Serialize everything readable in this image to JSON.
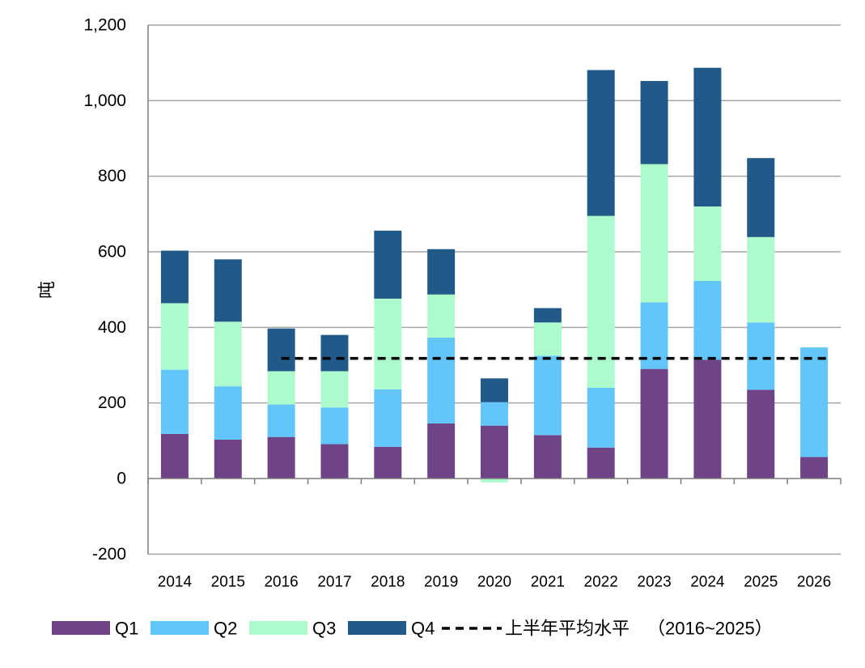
{
  "chart_data": {
    "type": "bar",
    "stacked": true,
    "title": "",
    "xlabel": "",
    "ylabel": "吨",
    "ylim": [
      -200,
      1200
    ],
    "yticks": [
      -200,
      0,
      200,
      400,
      600,
      800,
      1000,
      1200
    ],
    "ytick_labels": [
      "-200",
      "0",
      "200",
      "400",
      "600",
      "800",
      "1,000",
      "1,200"
    ],
    "grid": true,
    "legend_position": "bottom",
    "categories": [
      "2014",
      "2015",
      "2016",
      "2017",
      "2018",
      "2019",
      "2020",
      "2021",
      "2022",
      "2023",
      "2024",
      "2025",
      "2026"
    ],
    "series": [
      {
        "name": "Q1",
        "color": "#6f4487",
        "values": [
          118,
          103,
          110,
          91,
          84,
          146,
          140,
          115,
          82,
          290,
          314,
          235,
          57
        ]
      },
      {
        "name": "Q2",
        "color": "#62c6fb",
        "values": [
          170,
          141,
          86,
          97,
          152,
          227,
          62,
          210,
          158,
          176,
          209,
          178,
          290
        ]
      },
      {
        "name": "Q3",
        "color": "#adfbcd",
        "values": [
          176,
          171,
          88,
          96,
          240,
          114,
          -10,
          88,
          455,
          366,
          197,
          226,
          0
        ]
      },
      {
        "name": "Q4",
        "color": "#215988",
        "values": [
          139,
          165,
          113,
          96,
          180,
          120,
          63,
          38,
          386,
          220,
          367,
          209,
          0
        ]
      }
    ],
    "reference_line": {
      "name": "上半年平均水平",
      "name_suffix": "（2016~2025）",
      "value": 318,
      "x_start": "2016",
      "x_end": "2026",
      "style": "dashed",
      "color": "#000000"
    }
  }
}
